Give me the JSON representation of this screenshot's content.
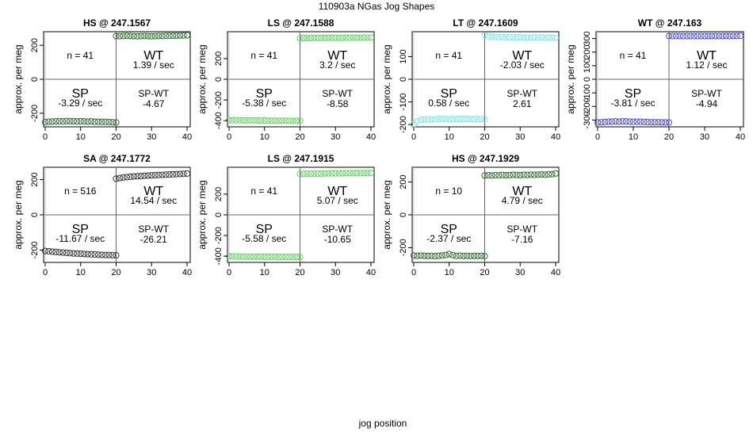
{
  "page": {
    "title": "110903a   NGas Jog Shapes",
    "xlabel": "jog position"
  },
  "chart_data": [
    {
      "type": "scatter",
      "title": "HS @ 247.1567",
      "color": "#2e6b2e",
      "ylabel": "approx. per meg",
      "xlim": [
        0,
        40
      ],
      "ylim": [
        -280,
        280
      ],
      "xticks": [
        "0",
        "10",
        "20",
        "30",
        "40"
      ],
      "yticks": [
        -200,
        0,
        200
      ],
      "n": "n = 41",
      "wt_rate": "1.39 / sec",
      "sp_rate": "-3.29 / sec",
      "spwt": "-4.67",
      "sp_points": [
        [
          0,
          -252
        ],
        [
          1,
          -250
        ],
        [
          2,
          -249
        ],
        [
          3,
          -248
        ],
        [
          4,
          -247
        ],
        [
          5,
          -248
        ],
        [
          6,
          -246
        ],
        [
          7,
          -247
        ],
        [
          8,
          -247
        ],
        [
          9,
          -248
        ],
        [
          10,
          -247
        ],
        [
          11,
          -248
        ],
        [
          12,
          -249
        ],
        [
          13,
          -248
        ],
        [
          14,
          -250
        ],
        [
          15,
          -250
        ],
        [
          16,
          -251
        ],
        [
          17,
          -251
        ],
        [
          18,
          -252
        ],
        [
          19,
          -253
        ],
        [
          20,
          -254
        ]
      ],
      "wt_points": [
        [
          20,
          254
        ],
        [
          21,
          254
        ],
        [
          22,
          255
        ],
        [
          23,
          256
        ],
        [
          24,
          255
        ],
        [
          25,
          254
        ],
        [
          26,
          253
        ],
        [
          27,
          254
        ],
        [
          28,
          255
        ],
        [
          29,
          254
        ],
        [
          30,
          253
        ],
        [
          31,
          254
        ],
        [
          32,
          255
        ],
        [
          33,
          255
        ],
        [
          34,
          256
        ],
        [
          35,
          256
        ],
        [
          36,
          257
        ],
        [
          37,
          257
        ],
        [
          38,
          258
        ],
        [
          39,
          258
        ],
        [
          40,
          259
        ]
      ]
    },
    {
      "type": "scatter",
      "title": "LS @ 247.1588",
      "color": "#5fd35f",
      "ylabel": "approx. per meg",
      "xlim": [
        0,
        40
      ],
      "ylim": [
        -460,
        460
      ],
      "xticks": [
        "0",
        "10",
        "20",
        "30",
        "40"
      ],
      "yticks": [
        -400,
        -200,
        0,
        200
      ],
      "n": "n = 41",
      "wt_rate": "3.2 / sec",
      "sp_rate": "-5.38 / sec",
      "spwt": "-8.58",
      "sp_points": [
        [
          0,
          -395
        ],
        [
          1,
          -396
        ],
        [
          2,
          -396
        ],
        [
          3,
          -397
        ],
        [
          4,
          -397
        ],
        [
          5,
          -398
        ],
        [
          6,
          -398
        ],
        [
          7,
          -398
        ],
        [
          8,
          -399
        ],
        [
          9,
          -399
        ],
        [
          10,
          -399
        ],
        [
          11,
          -400
        ],
        [
          12,
          -400
        ],
        [
          13,
          -400
        ],
        [
          14,
          -401
        ],
        [
          15,
          -401
        ],
        [
          16,
          -401
        ],
        [
          17,
          -402
        ],
        [
          18,
          -402
        ],
        [
          19,
          -402
        ],
        [
          20,
          -402
        ]
      ],
      "wt_points": [
        [
          20,
          398
        ],
        [
          21,
          399
        ],
        [
          22,
          399
        ],
        [
          23,
          399
        ],
        [
          24,
          400
        ],
        [
          25,
          400
        ],
        [
          26,
          400
        ],
        [
          27,
          400
        ],
        [
          28,
          401
        ],
        [
          29,
          401
        ],
        [
          30,
          401
        ],
        [
          31,
          401
        ],
        [
          32,
          401
        ],
        [
          33,
          402
        ],
        [
          34,
          402
        ],
        [
          35,
          402
        ],
        [
          36,
          402
        ],
        [
          37,
          402
        ],
        [
          38,
          403
        ],
        [
          39,
          403
        ],
        [
          40,
          403
        ]
      ]
    },
    {
      "type": "scatter",
      "title": "LT @ 247.1609",
      "color": "#7ae8e8",
      "ylabel": "approx. per meg",
      "xlim": [
        0,
        40
      ],
      "ylim": [
        -210,
        210
      ],
      "xticks": [
        "0",
        "10",
        "20",
        "30",
        "40"
      ],
      "yticks": [
        -200,
        -100,
        0,
        100
      ],
      "n": "n = 41",
      "wt_rate": "-2.03 / sec",
      "sp_rate": "0.58 / sec",
      "spwt": "2.61",
      "sp_points": [
        [
          0,
          -198
        ],
        [
          1,
          -186
        ],
        [
          2,
          -180
        ],
        [
          3,
          -178
        ],
        [
          4,
          -177
        ],
        [
          5,
          -178
        ],
        [
          6,
          -177
        ],
        [
          7,
          -176
        ],
        [
          8,
          -175
        ],
        [
          9,
          -176
        ],
        [
          10,
          -177
        ],
        [
          11,
          -176
        ],
        [
          12,
          -176
        ],
        [
          13,
          -175
        ],
        [
          14,
          -176
        ],
        [
          15,
          -175
        ],
        [
          16,
          -176
        ],
        [
          17,
          -177
        ],
        [
          18,
          -176
        ],
        [
          19,
          -176
        ],
        [
          20,
          -178
        ]
      ],
      "wt_points": [
        [
          20,
          195
        ],
        [
          21,
          190
        ],
        [
          22,
          188
        ],
        [
          23,
          187
        ],
        [
          24,
          186
        ],
        [
          25,
          187
        ],
        [
          26,
          185
        ],
        [
          27,
          186
        ],
        [
          28,
          185
        ],
        [
          29,
          184
        ],
        [
          30,
          186
        ],
        [
          31,
          184
        ],
        [
          32,
          184
        ],
        [
          33,
          183
        ],
        [
          34,
          185
        ],
        [
          35,
          184
        ],
        [
          36,
          185
        ],
        [
          37,
          183
        ],
        [
          38,
          184
        ],
        [
          39,
          184
        ],
        [
          40,
          183
        ]
      ]
    },
    {
      "type": "scatter",
      "title": "WT @ 247.163",
      "color": "#4a4ad8",
      "ylabel": "approx. per meg",
      "xlim": [
        0,
        40
      ],
      "ylim": [
        -350,
        350
      ],
      "xticks": [
        "0",
        "10",
        "20",
        "30",
        "40"
      ],
      "yticks": [
        -300,
        -200,
        -100,
        0,
        100,
        200,
        300
      ],
      "n": "n = 41",
      "wt_rate": "1.12 / sec",
      "sp_rate": "-3.81 / sec",
      "spwt": "-4.94",
      "sp_points": [
        [
          0,
          -318
        ],
        [
          1,
          -316
        ],
        [
          2,
          -314
        ],
        [
          3,
          -312
        ],
        [
          4,
          -312
        ],
        [
          5,
          -310
        ],
        [
          6,
          -312
        ],
        [
          7,
          -310
        ],
        [
          8,
          -310
        ],
        [
          9,
          -312
        ],
        [
          10,
          -313
        ],
        [
          11,
          -312
        ],
        [
          12,
          -313
        ],
        [
          13,
          -314
        ],
        [
          14,
          -315
        ],
        [
          15,
          -316
        ],
        [
          16,
          -316
        ],
        [
          17,
          -316
        ],
        [
          18,
          -317
        ],
        [
          19,
          -318
        ],
        [
          20,
          -318
        ]
      ],
      "wt_points": [
        [
          20,
          318
        ],
        [
          21,
          318
        ],
        [
          22,
          318
        ],
        [
          23,
          318
        ],
        [
          24,
          317
        ],
        [
          25,
          318
        ],
        [
          26,
          318
        ],
        [
          27,
          317
        ],
        [
          28,
          318
        ],
        [
          29,
          318
        ],
        [
          30,
          318
        ],
        [
          31,
          318
        ],
        [
          32,
          318
        ],
        [
          33,
          318
        ],
        [
          34,
          318
        ],
        [
          35,
          318
        ],
        [
          36,
          319
        ],
        [
          37,
          318
        ],
        [
          38,
          319
        ],
        [
          39,
          319
        ],
        [
          40,
          320
        ]
      ]
    },
    {
      "type": "scatter",
      "title": "SA @ 247.1772",
      "color": "#333333",
      "ylabel": "approx. per meg",
      "xlim": [
        0,
        40
      ],
      "ylim": [
        -270,
        270
      ],
      "xticks": [
        "0",
        "10",
        "20",
        "30",
        "40"
      ],
      "yticks": [
        -200,
        0,
        200
      ],
      "n": "n = 516",
      "wt_rate": "14.54 / sec",
      "sp_rate": "-11.67 / sec",
      "spwt": "-26.21",
      "sp_points": [
        [
          0,
          -205
        ],
        [
          1,
          -207
        ],
        [
          2,
          -209
        ],
        [
          3,
          -211
        ],
        [
          4,
          -213
        ],
        [
          5,
          -214
        ],
        [
          6,
          -216
        ],
        [
          7,
          -217
        ],
        [
          8,
          -219
        ],
        [
          9,
          -220
        ],
        [
          10,
          -221
        ],
        [
          11,
          -222
        ],
        [
          12,
          -223
        ],
        [
          13,
          -224
        ],
        [
          14,
          -225
        ],
        [
          15,
          -226
        ],
        [
          16,
          -227
        ],
        [
          17,
          -228
        ],
        [
          18,
          -228
        ],
        [
          19,
          -229
        ],
        [
          20,
          -230
        ]
      ],
      "wt_points": [
        [
          20,
          205
        ],
        [
          21,
          209
        ],
        [
          22,
          212
        ],
        [
          23,
          214
        ],
        [
          24,
          216
        ],
        [
          25,
          218
        ],
        [
          26,
          219
        ],
        [
          27,
          220
        ],
        [
          28,
          222
        ],
        [
          29,
          223
        ],
        [
          30,
          224
        ],
        [
          31,
          225
        ],
        [
          32,
          226
        ],
        [
          33,
          227
        ],
        [
          34,
          228
        ],
        [
          35,
          229
        ],
        [
          36,
          230
        ],
        [
          37,
          231
        ],
        [
          38,
          232
        ],
        [
          39,
          233
        ],
        [
          40,
          234
        ]
      ]
    },
    {
      "type": "scatter",
      "title": "LS @ 247.1915",
      "color": "#5fd35f",
      "ylabel": "approx. per meg",
      "xlim": [
        0,
        40
      ],
      "ylim": [
        -460,
        460
      ],
      "xticks": [
        "0",
        "10",
        "20",
        "30",
        "40"
      ],
      "yticks": [
        -400,
        -200,
        0,
        200
      ],
      "n": "n = 41",
      "wt_rate": "5.07 / sec",
      "sp_rate": "-5.58 / sec",
      "spwt": "-10.65",
      "sp_points": [
        [
          0,
          -400
        ],
        [
          1,
          -402
        ],
        [
          2,
          -403
        ],
        [
          3,
          -404
        ],
        [
          4,
          -404
        ],
        [
          5,
          -405
        ],
        [
          6,
          -405
        ],
        [
          7,
          -406
        ],
        [
          8,
          -406
        ],
        [
          9,
          -405
        ],
        [
          10,
          -405
        ],
        [
          11,
          -406
        ],
        [
          12,
          -406
        ],
        [
          13,
          -405
        ],
        [
          14,
          -406
        ],
        [
          15,
          -407
        ],
        [
          16,
          -406
        ],
        [
          17,
          -407
        ],
        [
          18,
          -407
        ],
        [
          19,
          -407
        ],
        [
          20,
          -408
        ]
      ],
      "wt_points": [
        [
          20,
          396
        ],
        [
          21,
          397
        ],
        [
          22,
          398
        ],
        [
          23,
          398
        ],
        [
          24,
          399
        ],
        [
          25,
          399
        ],
        [
          26,
          400
        ],
        [
          27,
          400
        ],
        [
          28,
          401
        ],
        [
          29,
          401
        ],
        [
          30,
          402
        ],
        [
          31,
          402
        ],
        [
          32,
          402
        ],
        [
          33,
          403
        ],
        [
          34,
          403
        ],
        [
          35,
          403
        ],
        [
          36,
          404
        ],
        [
          37,
          404
        ],
        [
          38,
          404
        ],
        [
          39,
          405
        ],
        [
          40,
          405
        ]
      ]
    },
    {
      "type": "scatter",
      "title": "HS @ 247.1929",
      "color": "#2e6b2e",
      "ylabel": "approx. per meg",
      "xlim": [
        0,
        40
      ],
      "ylim": [
        -290,
        290
      ],
      "xticks": [
        "0",
        "10",
        "20",
        "30",
        "40"
      ],
      "yticks": [
        -200,
        0,
        200
      ],
      "n": "n = 10",
      "wt_rate": "4.79 / sec",
      "sp_rate": "-2.37 / sec",
      "spwt": "-7.16",
      "sp_points": [
        [
          0,
          -248
        ],
        [
          1,
          -250
        ],
        [
          2,
          -249
        ],
        [
          3,
          -250
        ],
        [
          4,
          -251
        ],
        [
          5,
          -250
        ],
        [
          6,
          -252
        ],
        [
          7,
          -250
        ],
        [
          8,
          -248
        ],
        [
          9,
          -245
        ],
        [
          10,
          -240
        ],
        [
          11,
          -246
        ],
        [
          12,
          -250
        ],
        [
          13,
          -249
        ],
        [
          14,
          -251
        ],
        [
          15,
          -250
        ],
        [
          16,
          -251
        ],
        [
          17,
          -250
        ],
        [
          18,
          -251
        ],
        [
          19,
          -250
        ],
        [
          20,
          -252
        ]
      ],
      "wt_points": [
        [
          20,
          240
        ],
        [
          21,
          241
        ],
        [
          22,
          240
        ],
        [
          23,
          242
        ],
        [
          24,
          241
        ],
        [
          25,
          243
        ],
        [
          26,
          241
        ],
        [
          27,
          242
        ],
        [
          28,
          244
        ],
        [
          29,
          243
        ],
        [
          30,
          242
        ],
        [
          31,
          244
        ],
        [
          32,
          243
        ],
        [
          33,
          245
        ],
        [
          34,
          244
        ],
        [
          35,
          245
        ],
        [
          36,
          246
        ],
        [
          37,
          245
        ],
        [
          38,
          247
        ],
        [
          39,
          248
        ],
        [
          40,
          252
        ]
      ]
    }
  ]
}
